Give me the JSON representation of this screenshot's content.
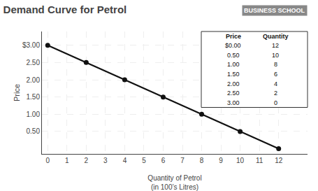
{
  "chart_data": {
    "type": "line",
    "title": "Demand Curve for Petrol",
    "ylabel": "Price",
    "xlabel": "Quantity of Petrol\n(in 100’s Litres)",
    "x": [
      0,
      2,
      4,
      6,
      8,
      10,
      12
    ],
    "values": [
      3.0,
      2.5,
      2.0,
      1.5,
      1.0,
      0.5,
      0.0
    ],
    "color": "#111111",
    "marker": "circle",
    "xlim": [
      -0.3,
      13.5
    ],
    "ylim": [
      -0.15,
      3.4
    ],
    "xticks": [
      0,
      1,
      2,
      3,
      4,
      5,
      6,
      7,
      8,
      9,
      10,
      11,
      12
    ],
    "yticks": [
      {
        "value": 0.5,
        "label": "0.50"
      },
      {
        "value": 1.0,
        "label": "1.00"
      },
      {
        "value": 1.5,
        "label": "1.50"
      },
      {
        "value": 2.0,
        "label": "2.00"
      },
      {
        "value": 2.5,
        "label": "2.50"
      },
      {
        "value": 3.0,
        "label": "$3.00"
      }
    ],
    "grid": true,
    "table": {
      "header": [
        "Price",
        "Quantity"
      ],
      "rows": [
        [
          "$0.00",
          "12"
        ],
        [
          "0.50",
          "10"
        ],
        [
          "1.00",
          "8"
        ],
        [
          "1.50",
          "6"
        ],
        [
          "2.00",
          "4"
        ],
        [
          "2.50",
          "2"
        ],
        [
          "3.00",
          "0"
        ]
      ]
    },
    "watermark": "BUSINESS SCHOOL"
  }
}
